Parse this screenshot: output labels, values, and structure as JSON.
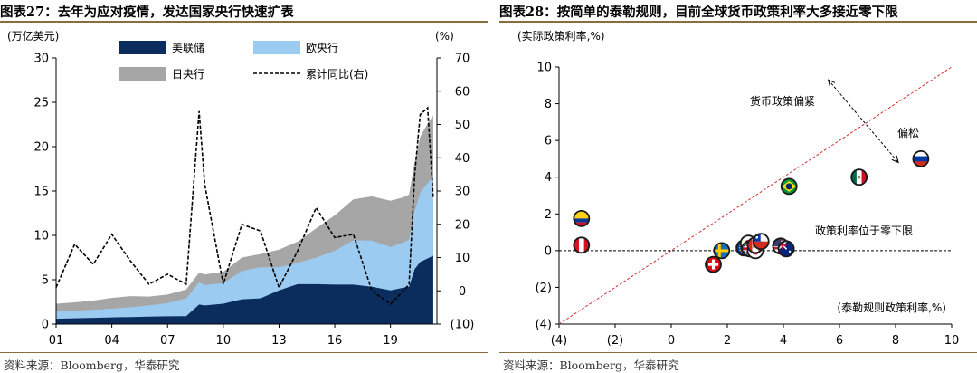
{
  "left": {
    "fig_no": "图表27：",
    "title": "去年为应对疫情，发达国家央行快速扩表",
    "source": "资料来源：Bloomberg，华泰研究",
    "colors": {
      "fed": "#0b2d5e",
      "ecb": "#9ccbf2",
      "boj": "#a6a6a6",
      "yoy": "#000000"
    }
  },
  "right": {
    "fig_no": "图表28：",
    "title": "按简单的泰勒规则，目前全球货币政策利率大多接近零下限",
    "source": "资料来源：Bloomberg，华泰研究",
    "colors": {
      "diagonal": "#d32f2f",
      "zeroline": "#000000"
    }
  },
  "chart_data": [
    {
      "type": "area",
      "ylabel_left": "(万亿美元)",
      "ylabel_right": "(%)",
      "legend_position": "top",
      "x_tick_labels": [
        "01",
        "04",
        "07",
        "10",
        "13",
        "16",
        "19"
      ],
      "ylim": [
        0,
        30
      ],
      "y_ticks": [
        0,
        5,
        10,
        15,
        20,
        25,
        30
      ],
      "y2lim": [
        -10,
        70
      ],
      "y2_tick_labels": [
        "(10)",
        "0",
        "10",
        "20",
        "30",
        "40",
        "50",
        "60",
        "70"
      ],
      "series_x": [
        2001,
        2002,
        2003,
        2004,
        2005,
        2006,
        2007,
        2008,
        2008.7,
        2009,
        2010,
        2011,
        2012,
        2013,
        2014,
        2015,
        2016,
        2017,
        2018,
        2019,
        2019.7,
        2020,
        2020.3,
        2020.6,
        2021,
        2021.3
      ],
      "series": [
        {
          "name": "美联储",
          "color": "#0b2d5e",
          "values": [
            0.6,
            0.65,
            0.7,
            0.75,
            0.8,
            0.85,
            0.88,
            0.9,
            2.2,
            2.1,
            2.3,
            2.8,
            2.9,
            3.8,
            4.5,
            4.5,
            4.45,
            4.45,
            4.2,
            3.8,
            4.1,
            4.2,
            6.2,
            7.0,
            7.4,
            7.7
          ]
        },
        {
          "name": "欧央行",
          "color": "#9ccbf2",
          "values": [
            0.8,
            0.85,
            0.9,
            1.0,
            1.1,
            1.25,
            1.5,
            2.0,
            2.5,
            2.3,
            2.3,
            3.2,
            3.5,
            2.6,
            2.4,
            3.0,
            3.8,
            5.0,
            5.2,
            4.9,
            5.1,
            5.3,
            6.5,
            7.8,
            8.5,
            9.0
          ]
        },
        {
          "name": "日央行",
          "color": "#a6a6a6",
          "values": [
            0.9,
            0.95,
            1.05,
            1.2,
            1.25,
            1.0,
            0.95,
            1.0,
            1.1,
            1.2,
            1.3,
            1.5,
            1.5,
            2.0,
            2.4,
            3.3,
            4.0,
            4.6,
            5.0,
            5.2,
            5.1,
            5.1,
            5.6,
            6.3,
            6.7,
            6.8
          ]
        },
        {
          "name": "累计同比(右)",
          "color": "#000000",
          "axis": "right",
          "style": "dashed",
          "values": [
            1,
            14,
            8,
            17,
            9,
            2,
            5,
            2,
            54,
            32,
            2,
            20,
            18,
            1,
            12,
            25,
            16,
            17,
            0,
            -4,
            0,
            2,
            35,
            53,
            55,
            28
          ]
        }
      ]
    },
    {
      "type": "scatter",
      "ylabel": "(实际政策利率,%)",
      "xlabel": "(泰勒规则政策利率,%)",
      "xlim": [
        -4,
        10
      ],
      "ylim": [
        -4,
        10
      ],
      "x_ticks": [
        -4,
        -2,
        0,
        2,
        4,
        6,
        8,
        10
      ],
      "x_tick_labels": [
        "(4)",
        "(2)",
        "0",
        "2",
        "4",
        "6",
        "8",
        "10"
      ],
      "y_ticks": [
        -4,
        -2,
        0,
        2,
        4,
        6,
        8,
        10
      ],
      "y_tick_labels": [
        "(4)",
        "(2)",
        "0",
        "2",
        "4",
        "6",
        "8",
        "10"
      ],
      "reference_lines": {
        "diagonal": "y = x",
        "horizontal": 0
      },
      "annotations": {
        "tighter": "货币政策偏紧",
        "looser": "偏松",
        "zero_bound": "政策利率位于零下限"
      },
      "points": [
        {
          "flag": "colombia",
          "x": -3.2,
          "y": 1.75
        },
        {
          "flag": "peru",
          "x": -3.2,
          "y": 0.3
        },
        {
          "flag": "switzerland",
          "x": 1.5,
          "y": -0.75
        },
        {
          "flag": "sweden",
          "x": 1.8,
          "y": 0.0
        },
        {
          "flag": "euro",
          "x": 2.6,
          "y": 0.15
        },
        {
          "flag": "korea",
          "x": 2.75,
          "y": 0.4
        },
        {
          "flag": "uk",
          "x": 2.8,
          "y": 0.1
        },
        {
          "flag": "japan",
          "x": 3.0,
          "y": 0.0
        },
        {
          "flag": "canada",
          "x": 3.0,
          "y": 0.3
        },
        {
          "flag": "chile",
          "x": 3.2,
          "y": 0.5
        },
        {
          "flag": "usa",
          "x": 3.9,
          "y": 0.25
        },
        {
          "flag": "australia",
          "x": 4.1,
          "y": 0.1
        },
        {
          "flag": "brazil",
          "x": 4.2,
          "y": 3.5
        },
        {
          "flag": "mexico",
          "x": 6.7,
          "y": 4.0
        },
        {
          "flag": "russia",
          "x": 8.9,
          "y": 5.0
        }
      ]
    }
  ]
}
